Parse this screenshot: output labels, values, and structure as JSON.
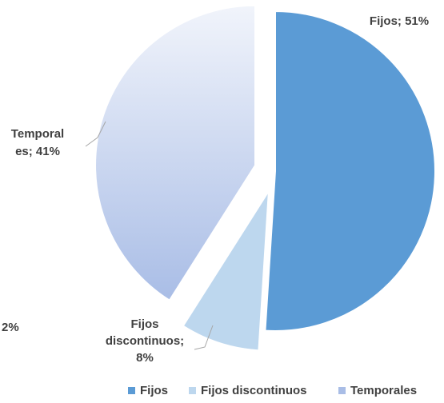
{
  "chart_data": {
    "type": "pie",
    "categories": [
      "Fijos",
      "Fijos discontinuos",
      "Temporales"
    ],
    "values": [
      51,
      8,
      41
    ],
    "title": "",
    "data_labels": [
      {
        "category": "Fijos",
        "lines": [
          "Fijos; 51%"
        ]
      },
      {
        "category": "Fijos discontinuos",
        "lines": [
          "Fijos",
          "discontinuos;",
          "8%"
        ]
      },
      {
        "category": "Temporales",
        "lines": [
          "Temporal",
          "es; 41%"
        ]
      }
    ],
    "stray_label": "2%",
    "legend": {
      "placement": "bottom-right",
      "items": [
        "Fijos",
        "Fijos discontinuos",
        "Temporales"
      ]
    },
    "colors": {
      "Fijos": "#5b9bd5",
      "Fijos discontinuos": "#bdd7ee",
      "Temporales_top": "#f1f4fb",
      "Temporales_bottom": "#a9bde6",
      "leader": "#a6a6a6",
      "text": "#404040"
    }
  }
}
